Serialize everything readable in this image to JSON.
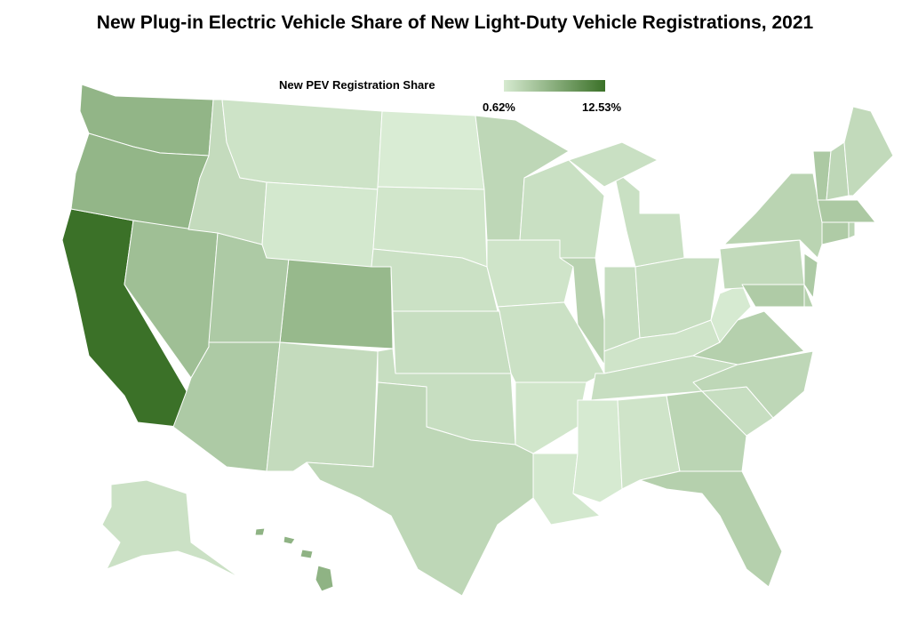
{
  "title": "New Plug-in Electric Vehicle Share of New Light-Duty Vehicle Registrations, 2021",
  "legend": {
    "title": "New PEV Registration Share",
    "min_label": "0.62%",
    "max_label": "12.53%",
    "min_value": 0.62,
    "max_value": 12.53,
    "color_low": "#d9ecd4",
    "color_high": "#3b7128"
  },
  "chart_data": {
    "type": "choropleth",
    "title": "New Plug-in Electric Vehicle Share of New Light-Duty Vehicle Registrations, 2021",
    "unit": "%",
    "states": [
      {
        "id": "CA",
        "value": 12.53
      },
      {
        "id": "WA",
        "value": 5.0
      },
      {
        "id": "OR",
        "value": 4.9
      },
      {
        "id": "NV",
        "value": 4.0
      },
      {
        "id": "CO",
        "value": 4.6
      },
      {
        "id": "HI",
        "value": 5.2
      },
      {
        "id": "AZ",
        "value": 3.0
      },
      {
        "id": "UT",
        "value": 3.0
      },
      {
        "id": "ID",
        "value": 1.6
      },
      {
        "id": "MT",
        "value": 1.1
      },
      {
        "id": "WY",
        "value": 0.8
      },
      {
        "id": "NM",
        "value": 1.6
      },
      {
        "id": "ND",
        "value": 0.62
      },
      {
        "id": "SD",
        "value": 0.9
      },
      {
        "id": "NE",
        "value": 1.2
      },
      {
        "id": "KS",
        "value": 1.4
      },
      {
        "id": "OK",
        "value": 1.4
      },
      {
        "id": "TX",
        "value": 1.9
      },
      {
        "id": "MN",
        "value": 1.9
      },
      {
        "id": "IA",
        "value": 1.0
      },
      {
        "id": "MO",
        "value": 1.2
      },
      {
        "id": "AR",
        "value": 0.9
      },
      {
        "id": "LA",
        "value": 0.8
      },
      {
        "id": "WI",
        "value": 1.3
      },
      {
        "id": "IL",
        "value": 2.3
      },
      {
        "id": "MI",
        "value": 1.3
      },
      {
        "id": "IN",
        "value": 1.4
      },
      {
        "id": "OH",
        "value": 1.4
      },
      {
        "id": "KY",
        "value": 1.0
      },
      {
        "id": "TN",
        "value": 1.4
      },
      {
        "id": "MS",
        "value": 0.7
      },
      {
        "id": "AL",
        "value": 1.0
      },
      {
        "id": "GA",
        "value": 2.1
      },
      {
        "id": "FL",
        "value": 2.5
      },
      {
        "id": "SC",
        "value": 1.4
      },
      {
        "id": "NC",
        "value": 1.9
      },
      {
        "id": "VA",
        "value": 2.5
      },
      {
        "id": "WV",
        "value": 0.7
      },
      {
        "id": "PA",
        "value": 1.7
      },
      {
        "id": "MD",
        "value": 2.9
      },
      {
        "id": "DE",
        "value": 2.4
      },
      {
        "id": "NJ",
        "value": 3.0
      },
      {
        "id": "NY",
        "value": 2.2
      },
      {
        "id": "CT",
        "value": 2.9
      },
      {
        "id": "RI",
        "value": 2.1
      },
      {
        "id": "MA",
        "value": 3.1
      },
      {
        "id": "VT",
        "value": 3.1
      },
      {
        "id": "NH",
        "value": 1.9
      },
      {
        "id": "ME",
        "value": 1.7
      },
      {
        "id": "AK",
        "value": 1.2
      }
    ]
  }
}
